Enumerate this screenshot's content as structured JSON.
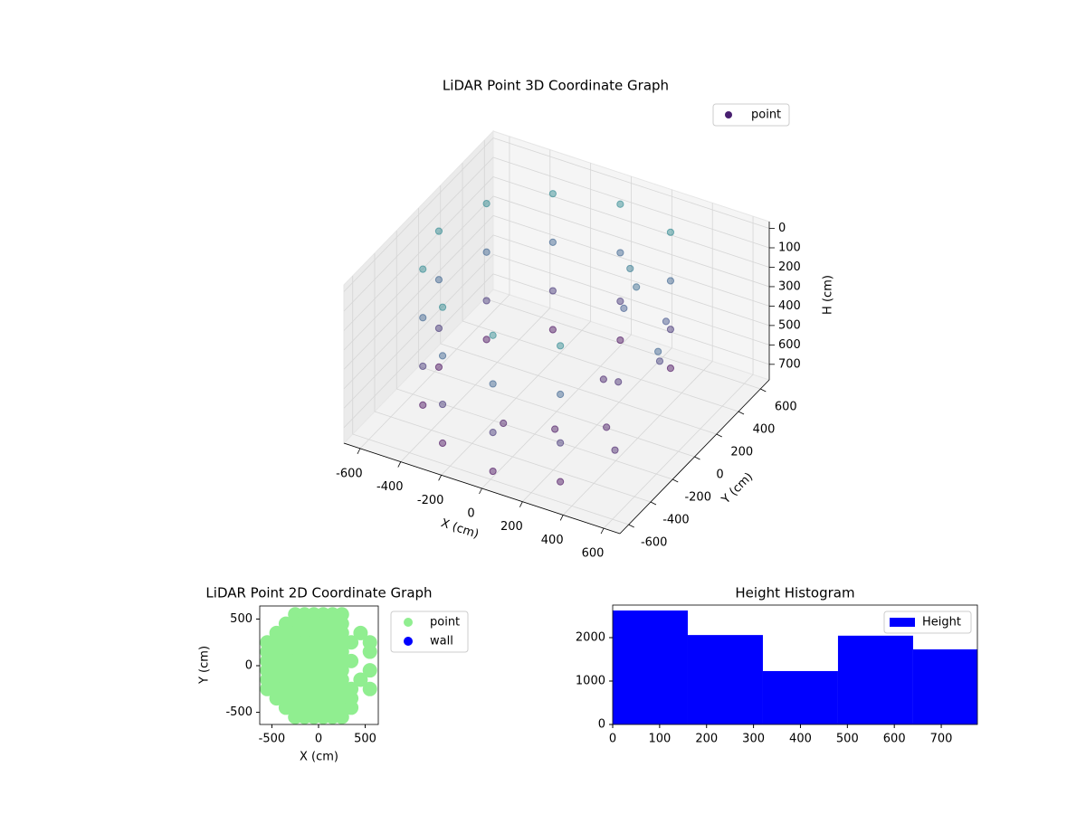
{
  "chart_data": [
    {
      "type": "scatter3d",
      "title": "LiDAR Point 3D Coordinate Graph",
      "xlabel": "X (cm)",
      "ylabel": "Y (cm)",
      "zlabel": "H (cm)",
      "xlim": [
        -680,
        680
      ],
      "ylim": [
        -680,
        680
      ],
      "zlim": [
        780,
        -35
      ],
      "xticks": [
        -600,
        -400,
        -200,
        0,
        200,
        400,
        600
      ],
      "yticks": [
        -600,
        -400,
        -200,
        0,
        200,
        400,
        600
      ],
      "zticks": [
        0,
        100,
        200,
        300,
        400,
        500,
        600,
        700
      ],
      "legend": "upper right",
      "colormap": "viridis",
      "grid": true,
      "series": [
        {
          "name": "point",
          "color": "#481f70",
          "x": [
            290,
            290,
            290,
            290,
            0,
            0,
            0,
            0,
            -290,
            -290,
            -290,
            -290,
            -502,
            -502,
            -502,
            -502,
            -580,
            -580,
            -580,
            -580,
            -502,
            -502,
            -502,
            -502,
            -290,
            -290,
            -290,
            -290,
            0,
            0,
            0,
            0,
            290,
            290,
            290,
            290,
            200,
            220,
            180,
            250,
            300,
            400,
            450,
            100,
            350,
            500,
            -100,
            150
          ],
          "y": [
            502,
            502,
            502,
            502,
            580,
            580,
            580,
            580,
            502,
            502,
            502,
            502,
            290,
            290,
            290,
            290,
            0,
            0,
            0,
            0,
            -290,
            -290,
            -290,
            -290,
            -502,
            -502,
            -502,
            -502,
            -580,
            -580,
            -580,
            -580,
            -502,
            -502,
            -502,
            -502,
            300,
            320,
            280,
            100,
            -100,
            200,
            -300,
            -200,
            350,
            0,
            -300,
            150
          ],
          "z": [
            50,
            300,
            550,
            750,
            50,
            300,
            550,
            750,
            50,
            300,
            550,
            750,
            50,
            300,
            550,
            750,
            50,
            300,
            550,
            750,
            50,
            300,
            550,
            750,
            50,
            300,
            550,
            750,
            50,
            300,
            550,
            750,
            50,
            300,
            550,
            750,
            150,
            250,
            350,
            600,
            700,
            500,
            650,
            720,
            400,
            300,
            700,
            650
          ]
        }
      ]
    },
    {
      "type": "scatter",
      "title": "LiDAR Point 2D Coordinate Graph",
      "xlabel": "X (cm)",
      "ylabel": "Y (cm)",
      "xlim": [
        -630,
        640
      ],
      "ylim": [
        -630,
        640
      ],
      "xticks": [
        -500,
        0,
        500
      ],
      "yticks": [
        -500,
        0,
        500
      ],
      "legend": "upper left outside",
      "series": [
        {
          "name": "point",
          "color": "#90ee90",
          "x": [
            -250,
            -150,
            -50,
            50,
            150,
            250,
            -350,
            -250,
            -150,
            -50,
            50,
            150,
            250,
            -450,
            -350,
            -250,
            -150,
            -50,
            50,
            150,
            250,
            450,
            -550,
            -450,
            -350,
            -250,
            -150,
            -50,
            50,
            150,
            250,
            350,
            550,
            -550,
            -450,
            -350,
            -250,
            -150,
            -50,
            50,
            150,
            250,
            550,
            -550,
            -450,
            -350,
            -250,
            -150,
            -50,
            50,
            150,
            250,
            350,
            -550,
            -450,
            -350,
            -250,
            -150,
            -50,
            50,
            150,
            250,
            550,
            -550,
            -450,
            -350,
            -250,
            -150,
            -50,
            50,
            150,
            250,
            450,
            -550,
            -450,
            -350,
            -250,
            -150,
            -50,
            50,
            150,
            250,
            350,
            550,
            -450,
            -350,
            -250,
            -150,
            -50,
            50,
            150,
            250,
            350,
            -350,
            -250,
            -150,
            -50,
            50,
            150,
            250,
            350,
            -250,
            -150,
            -50,
            50,
            150,
            250
          ],
          "y": [
            550,
            550,
            550,
            550,
            550,
            550,
            450,
            450,
            450,
            450,
            450,
            450,
            450,
            350,
            350,
            350,
            350,
            350,
            350,
            350,
            350,
            350,
            250,
            250,
            250,
            250,
            250,
            250,
            250,
            250,
            250,
            250,
            250,
            150,
            150,
            150,
            150,
            150,
            150,
            150,
            150,
            150,
            150,
            50,
            50,
            50,
            50,
            50,
            50,
            50,
            50,
            50,
            50,
            -50,
            -50,
            -50,
            -50,
            -50,
            -50,
            -50,
            -50,
            -50,
            -50,
            -150,
            -150,
            -150,
            -150,
            -150,
            -150,
            -150,
            -150,
            -150,
            -150,
            -250,
            -250,
            -250,
            -250,
            -250,
            -250,
            -250,
            -250,
            -250,
            -250,
            -250,
            -350,
            -350,
            -350,
            -350,
            -350,
            -350,
            -350,
            -350,
            -350,
            -450,
            -450,
            -450,
            -450,
            -450,
            -450,
            -450,
            -450,
            -550,
            -550,
            -550,
            -550,
            -550,
            -550
          ]
        },
        {
          "name": "wall",
          "color": "#0000ff",
          "x": [],
          "y": []
        }
      ]
    },
    {
      "type": "histogram",
      "title": "Height Histogram",
      "bins": [
        0,
        160,
        320,
        480,
        640,
        800
      ],
      "values": [
        2625,
        2060,
        1230,
        2045,
        1730
      ],
      "series_name": "Height",
      "color": "#0000ff",
      "legend": "upper right",
      "xlim": [
        0,
        777
      ],
      "ylim": [
        0,
        2750
      ],
      "xticks": [
        0,
        100,
        200,
        300,
        400,
        500,
        600,
        700
      ],
      "yticks": [
        0,
        1000,
        2000
      ]
    }
  ]
}
